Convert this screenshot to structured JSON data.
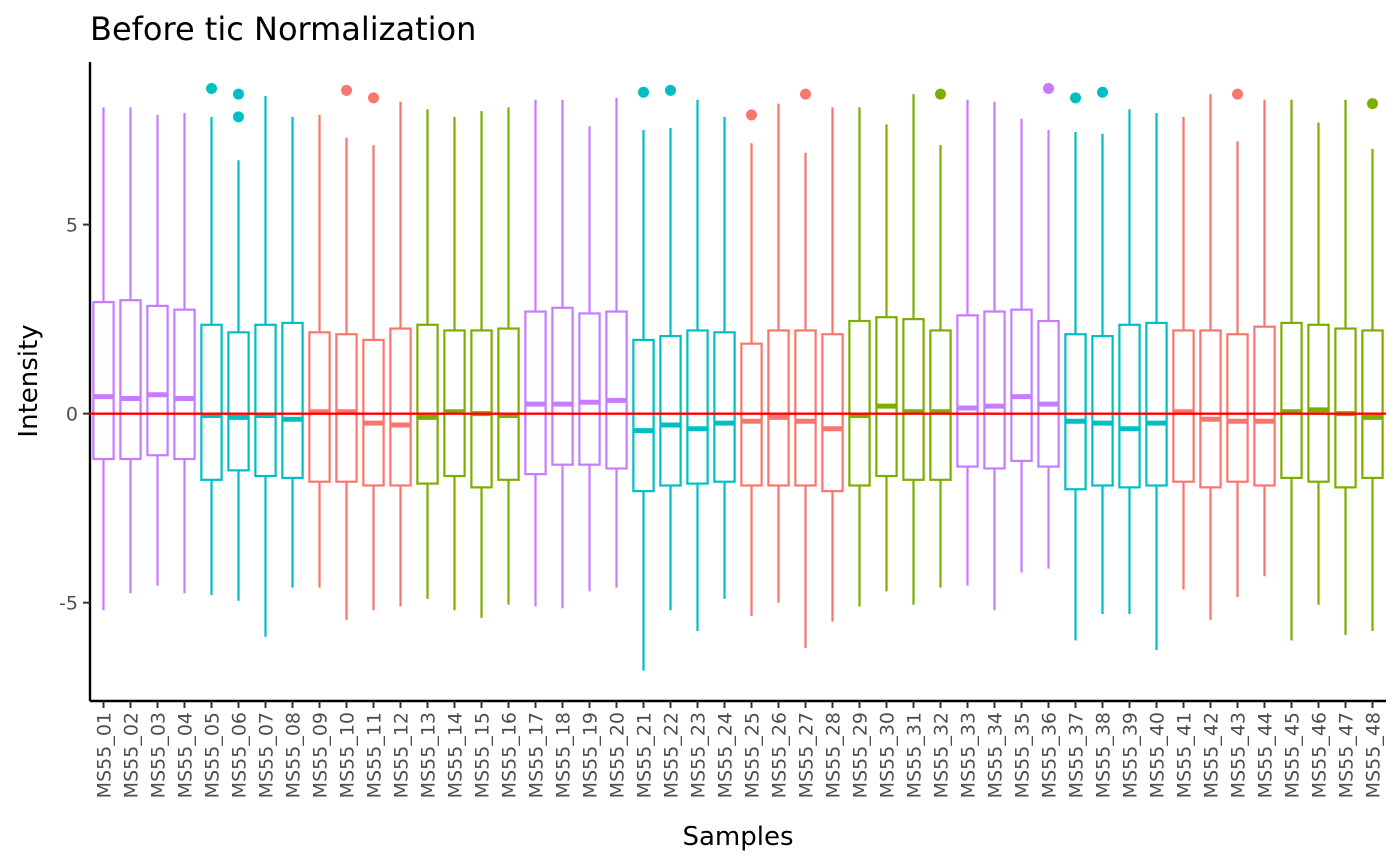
{
  "chart_data": {
    "type": "boxplot",
    "title": "Before tic Normalization",
    "xlabel": "Samples",
    "ylabel": "Intensity",
    "ylim": [
      -7.6,
      9.3
    ],
    "yticks": [
      -5,
      0,
      5
    ],
    "grid": false,
    "legend": "none",
    "reference_line": {
      "y": 0,
      "color": "#ff0000"
    },
    "group_colors": {
      "purple": "#c77cff",
      "teal": "#00bfc4",
      "red": "#f8766d",
      "green": "#7cae00"
    },
    "samples": [
      {
        "name": "MS55_01",
        "color": "#c77cff",
        "lo": -5.2,
        "q1": -1.2,
        "med": 0.45,
        "q3": 2.95,
        "hi": 8.1,
        "out": []
      },
      {
        "name": "MS55_02",
        "color": "#c77cff",
        "lo": -4.75,
        "q1": -1.2,
        "med": 0.4,
        "q3": 3.0,
        "hi": 8.1,
        "out": []
      },
      {
        "name": "MS55_03",
        "color": "#c77cff",
        "lo": -4.55,
        "q1": -1.1,
        "med": 0.5,
        "q3": 2.85,
        "hi": 7.9,
        "out": []
      },
      {
        "name": "MS55_04",
        "color": "#c77cff",
        "lo": -4.75,
        "q1": -1.2,
        "med": 0.4,
        "q3": 2.75,
        "hi": 7.95,
        "out": []
      },
      {
        "name": "MS55_05",
        "color": "#00bfc4",
        "lo": -4.8,
        "q1": -1.75,
        "med": -0.05,
        "q3": 2.35,
        "hi": 7.85,
        "out": [
          8.6
        ]
      },
      {
        "name": "MS55_06",
        "color": "#00bfc4",
        "lo": -4.95,
        "q1": -1.5,
        "med": -0.1,
        "q3": 2.15,
        "hi": 6.7,
        "out": [
          8.45,
          7.85
        ]
      },
      {
        "name": "MS55_07",
        "color": "#00bfc4",
        "lo": -5.9,
        "q1": -1.65,
        "med": -0.05,
        "q3": 2.35,
        "hi": 8.4,
        "out": []
      },
      {
        "name": "MS55_08",
        "color": "#00bfc4",
        "lo": -4.6,
        "q1": -1.7,
        "med": -0.15,
        "q3": 2.4,
        "hi": 7.85,
        "out": []
      },
      {
        "name": "MS55_09",
        "color": "#f8766d",
        "lo": -4.6,
        "q1": -1.8,
        "med": 0.05,
        "q3": 2.15,
        "hi": 7.9,
        "out": []
      },
      {
        "name": "MS55_10",
        "color": "#f8766d",
        "lo": -5.45,
        "q1": -1.8,
        "med": 0.05,
        "q3": 2.1,
        "hi": 7.3,
        "out": [
          8.55
        ]
      },
      {
        "name": "MS55_11",
        "color": "#f8766d",
        "lo": -5.2,
        "q1": -1.9,
        "med": -0.25,
        "q3": 1.95,
        "hi": 7.1,
        "out": [
          8.35
        ]
      },
      {
        "name": "MS55_12",
        "color": "#f8766d",
        "lo": -5.1,
        "q1": -1.9,
        "med": -0.3,
        "q3": 2.25,
        "hi": 8.25,
        "out": []
      },
      {
        "name": "MS55_13",
        "color": "#7cae00",
        "lo": -4.9,
        "q1": -1.85,
        "med": -0.1,
        "q3": 2.35,
        "hi": 8.05,
        "out": []
      },
      {
        "name": "MS55_14",
        "color": "#7cae00",
        "lo": -5.2,
        "q1": -1.65,
        "med": 0.05,
        "q3": 2.2,
        "hi": 7.85,
        "out": []
      },
      {
        "name": "MS55_15",
        "color": "#7cae00",
        "lo": -5.4,
        "q1": -1.95,
        "med": 0.0,
        "q3": 2.2,
        "hi": 8.0,
        "out": []
      },
      {
        "name": "MS55_16",
        "color": "#7cae00",
        "lo": -5.05,
        "q1": -1.75,
        "med": -0.05,
        "q3": 2.25,
        "hi": 8.1,
        "out": []
      },
      {
        "name": "MS55_17",
        "color": "#c77cff",
        "lo": -5.1,
        "q1": -1.6,
        "med": 0.25,
        "q3": 2.7,
        "hi": 8.3,
        "out": []
      },
      {
        "name": "MS55_18",
        "color": "#c77cff",
        "lo": -5.15,
        "q1": -1.35,
        "med": 0.25,
        "q3": 2.8,
        "hi": 8.3,
        "out": []
      },
      {
        "name": "MS55_19",
        "color": "#c77cff",
        "lo": -4.7,
        "q1": -1.35,
        "med": 0.3,
        "q3": 2.65,
        "hi": 7.6,
        "out": []
      },
      {
        "name": "MS55_20",
        "color": "#c77cff",
        "lo": -4.6,
        "q1": -1.45,
        "med": 0.35,
        "q3": 2.7,
        "hi": 8.35,
        "out": []
      },
      {
        "name": "MS55_21",
        "color": "#00bfc4",
        "lo": -6.8,
        "q1": -2.05,
        "med": -0.45,
        "q3": 1.95,
        "hi": 7.5,
        "out": [
          8.5
        ]
      },
      {
        "name": "MS55_22",
        "color": "#00bfc4",
        "lo": -5.2,
        "q1": -1.9,
        "med": -0.3,
        "q3": 2.05,
        "hi": 7.55,
        "out": [
          8.55
        ]
      },
      {
        "name": "MS55_23",
        "color": "#00bfc4",
        "lo": -5.75,
        "q1": -1.85,
        "med": -0.4,
        "q3": 2.2,
        "hi": 8.3,
        "out": []
      },
      {
        "name": "MS55_24",
        "color": "#00bfc4",
        "lo": -4.9,
        "q1": -1.8,
        "med": -0.25,
        "q3": 2.15,
        "hi": 7.85,
        "out": []
      },
      {
        "name": "MS55_25",
        "color": "#f8766d",
        "lo": -5.35,
        "q1": -1.9,
        "med": -0.2,
        "q3": 1.85,
        "hi": 7.15,
        "out": [
          7.9
        ]
      },
      {
        "name": "MS55_26",
        "color": "#f8766d",
        "lo": -5.0,
        "q1": -1.9,
        "med": -0.1,
        "q3": 2.2,
        "hi": 8.2,
        "out": []
      },
      {
        "name": "MS55_27",
        "color": "#f8766d",
        "lo": -6.2,
        "q1": -1.9,
        "med": -0.2,
        "q3": 2.2,
        "hi": 6.9,
        "out": [
          8.45
        ]
      },
      {
        "name": "MS55_28",
        "color": "#f8766d",
        "lo": -5.5,
        "q1": -2.05,
        "med": -0.4,
        "q3": 2.1,
        "hi": 8.1,
        "out": []
      },
      {
        "name": "MS55_29",
        "color": "#7cae00",
        "lo": -5.1,
        "q1": -1.9,
        "med": -0.05,
        "q3": 2.45,
        "hi": 8.1,
        "out": []
      },
      {
        "name": "MS55_30",
        "color": "#7cae00",
        "lo": -4.7,
        "q1": -1.65,
        "med": 0.2,
        "q3": 2.55,
        "hi": 7.65,
        "out": []
      },
      {
        "name": "MS55_31",
        "color": "#7cae00",
        "lo": -5.05,
        "q1": -1.75,
        "med": 0.05,
        "q3": 2.5,
        "hi": 8.45,
        "out": []
      },
      {
        "name": "MS55_32",
        "color": "#7cae00",
        "lo": -4.6,
        "q1": -1.75,
        "med": 0.05,
        "q3": 2.2,
        "hi": 7.1,
        "out": [
          8.45
        ]
      },
      {
        "name": "MS55_33",
        "color": "#c77cff",
        "lo": -4.55,
        "q1": -1.4,
        "med": 0.15,
        "q3": 2.6,
        "hi": 8.3,
        "out": []
      },
      {
        "name": "MS55_34",
        "color": "#c77cff",
        "lo": -5.2,
        "q1": -1.45,
        "med": 0.2,
        "q3": 2.7,
        "hi": 8.25,
        "out": []
      },
      {
        "name": "MS55_35",
        "color": "#c77cff",
        "lo": -4.2,
        "q1": -1.25,
        "med": 0.45,
        "q3": 2.75,
        "hi": 7.8,
        "out": []
      },
      {
        "name": "MS55_36",
        "color": "#c77cff",
        "lo": -4.1,
        "q1": -1.4,
        "med": 0.25,
        "q3": 2.45,
        "hi": 7.5,
        "out": [
          8.6
        ]
      },
      {
        "name": "MS55_37",
        "color": "#00bfc4",
        "lo": -6.0,
        "q1": -2.0,
        "med": -0.2,
        "q3": 2.1,
        "hi": 7.45,
        "out": [
          8.35
        ]
      },
      {
        "name": "MS55_38",
        "color": "#00bfc4",
        "lo": -5.3,
        "q1": -1.9,
        "med": -0.25,
        "q3": 2.05,
        "hi": 7.4,
        "out": [
          8.5
        ]
      },
      {
        "name": "MS55_39",
        "color": "#00bfc4",
        "lo": -5.3,
        "q1": -1.95,
        "med": -0.4,
        "q3": 2.35,
        "hi": 8.05,
        "out": []
      },
      {
        "name": "MS55_40",
        "color": "#00bfc4",
        "lo": -6.25,
        "q1": -1.9,
        "med": -0.25,
        "q3": 2.4,
        "hi": 7.95,
        "out": []
      },
      {
        "name": "MS55_41",
        "color": "#f8766d",
        "lo": -4.65,
        "q1": -1.8,
        "med": 0.05,
        "q3": 2.2,
        "hi": 7.85,
        "out": []
      },
      {
        "name": "MS55_42",
        "color": "#f8766d",
        "lo": -5.45,
        "q1": -1.95,
        "med": -0.15,
        "q3": 2.2,
        "hi": 8.45,
        "out": []
      },
      {
        "name": "MS55_43",
        "color": "#f8766d",
        "lo": -4.85,
        "q1": -1.8,
        "med": -0.2,
        "q3": 2.1,
        "hi": 7.2,
        "out": [
          8.45
        ]
      },
      {
        "name": "MS55_44",
        "color": "#f8766d",
        "lo": -4.3,
        "q1": -1.9,
        "med": -0.2,
        "q3": 2.3,
        "hi": 8.3,
        "out": []
      },
      {
        "name": "MS55_45",
        "color": "#7cae00",
        "lo": -6.0,
        "q1": -1.7,
        "med": 0.05,
        "q3": 2.4,
        "hi": 8.3,
        "out": []
      },
      {
        "name": "MS55_46",
        "color": "#7cae00",
        "lo": -5.05,
        "q1": -1.8,
        "med": 0.1,
        "q3": 2.35,
        "hi": 7.7,
        "out": []
      },
      {
        "name": "MS55_47",
        "color": "#7cae00",
        "lo": -5.85,
        "q1": -1.95,
        "med": 0.0,
        "q3": 2.25,
        "hi": 8.3,
        "out": []
      },
      {
        "name": "MS55_48",
        "color": "#7cae00",
        "lo": -5.75,
        "q1": -1.7,
        "med": -0.1,
        "q3": 2.2,
        "hi": 7.0,
        "out": [
          8.2
        ]
      }
    ]
  }
}
